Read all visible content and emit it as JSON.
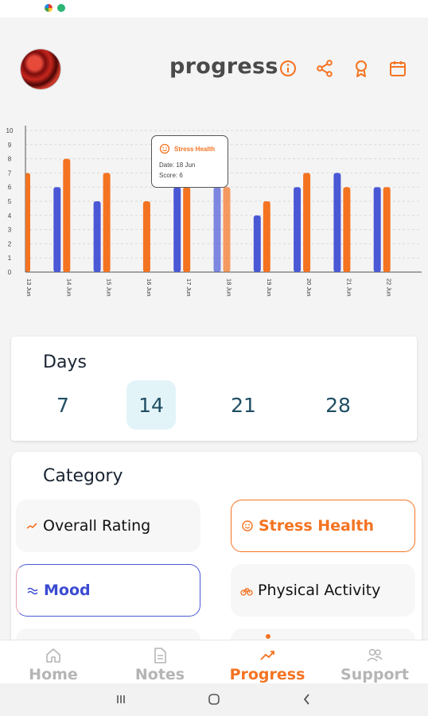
{
  "header": {
    "title": "progress",
    "icons": [
      "info-icon",
      "share-icon",
      "award-icon",
      "calendar-icon"
    ]
  },
  "colors": {
    "accent": "#f47321",
    "mood_series": "#4a58d6",
    "stress_series": "#f47321",
    "day_selected_bg": "#e3f4f9",
    "text_dark": "#1a2533"
  },
  "chart_data": {
    "type": "bar",
    "y_ticks": [
      "0",
      "1",
      "2",
      "3",
      "4",
      "5",
      "6",
      "7",
      "8",
      "9",
      "10"
    ],
    "ylim": [
      0,
      10
    ],
    "grid": true,
    "categories": [
      "13 Jun",
      "14 Jun",
      "15 Jun",
      "16 Jun",
      "17 Jun",
      "18 Jun",
      "19 Jun",
      "20 Jun",
      "21 Jun",
      "22 Jun"
    ],
    "series": [
      {
        "name": "Mood",
        "values": [
          null,
          6,
          5,
          null,
          6,
          6,
          4,
          6,
          7,
          6
        ]
      },
      {
        "name": "Stress Health",
        "values": [
          7,
          8,
          7,
          5,
          6,
          6,
          5,
          7,
          6,
          6
        ]
      }
    ],
    "highlight_index": 5
  },
  "tooltip": {
    "title": "Stress Health",
    "date": "Date: 18 Jun",
    "score": "Score: 6"
  },
  "days": {
    "title": "Days",
    "options": [
      "7",
      "14",
      "21",
      "28"
    ],
    "selected": "14"
  },
  "category": {
    "title": "Category",
    "items": [
      {
        "label": "Overall Rating",
        "icon": "trend-icon"
      },
      {
        "label": "Stress Health",
        "icon": "smile-icon"
      },
      {
        "label": "Mood",
        "icon": "waves-icon"
      },
      {
        "label": "Physical Activity",
        "icon": "bicycle-icon"
      }
    ]
  },
  "nav": {
    "items": [
      {
        "label": "Home",
        "icon": "home-icon"
      },
      {
        "label": "Notes",
        "icon": "notes-icon"
      },
      {
        "label": "Progress",
        "icon": "progress-icon"
      },
      {
        "label": "Support",
        "icon": "support-icon"
      }
    ],
    "active": "Progress"
  }
}
